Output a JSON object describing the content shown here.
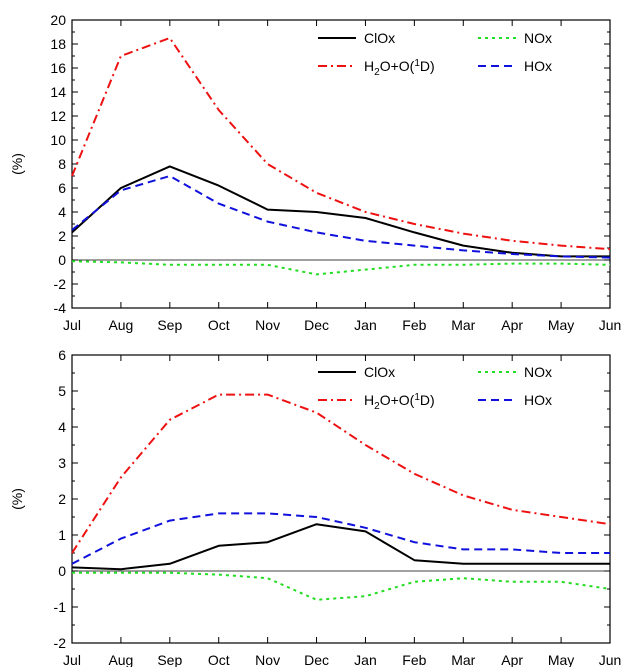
{
  "chart_data": [
    {
      "type": "line",
      "x": [
        "Jul",
        "Aug",
        "Sep",
        "Oct",
        "Nov",
        "Dec",
        "Jan",
        "Feb",
        "Mar",
        "Apr",
        "May",
        "Jun"
      ],
      "ylabel": "(%)",
      "ylim": [
        -4,
        20
      ],
      "yticks": [
        -4,
        -2,
        0,
        2,
        4,
        6,
        8,
        10,
        12,
        14,
        16,
        18,
        20
      ],
      "zero_line": true,
      "legend": "top-right",
      "series": [
        {
          "name": "ClOx",
          "color": "#000000",
          "dash": "solid",
          "values": [
            2.3,
            6.0,
            7.8,
            6.2,
            4.2,
            4.0,
            3.5,
            2.3,
            1.2,
            0.6,
            0.3,
            0.3
          ]
        },
        {
          "name": "NOx",
          "color": "#22dd22",
          "dash": "dotted",
          "values": [
            -0.1,
            -0.2,
            -0.4,
            -0.4,
            -0.4,
            -1.2,
            -0.8,
            -0.4,
            -0.4,
            -0.3,
            -0.3,
            -0.4
          ]
        },
        {
          "name": "H2O+O(1D)",
          "color": "#ee1111",
          "dash": "dashdot",
          "values": [
            7.0,
            17.0,
            18.5,
            12.5,
            8.0,
            5.6,
            4.0,
            3.0,
            2.2,
            1.6,
            1.2,
            0.9
          ]
        },
        {
          "name": "HOx",
          "color": "#1111dd",
          "dash": "dashed",
          "values": [
            2.5,
            5.8,
            7.0,
            4.7,
            3.2,
            2.3,
            1.6,
            1.2,
            0.8,
            0.5,
            0.3,
            0.2
          ]
        }
      ]
    },
    {
      "type": "line",
      "x": [
        "Jul",
        "Aug",
        "Sep",
        "Oct",
        "Nov",
        "Dec",
        "Jan",
        "Feb",
        "Mar",
        "Apr",
        "May",
        "Jun"
      ],
      "ylabel": "(%)",
      "ylim": [
        -2,
        6
      ],
      "yticks": [
        -2,
        -1,
        0,
        1,
        2,
        3,
        4,
        5,
        6
      ],
      "zero_line": true,
      "legend": "top-right",
      "series": [
        {
          "name": "ClOx",
          "color": "#000000",
          "dash": "solid",
          "values": [
            0.1,
            0.05,
            0.2,
            0.7,
            0.8,
            1.3,
            1.1,
            0.3,
            0.2,
            0.2,
            0.2,
            0.2
          ]
        },
        {
          "name": "NOx",
          "color": "#22dd22",
          "dash": "dotted",
          "values": [
            -0.05,
            -0.05,
            -0.05,
            -0.1,
            -0.2,
            -0.8,
            -0.7,
            -0.3,
            -0.2,
            -0.3,
            -0.3,
            -0.5
          ]
        },
        {
          "name": "H2O+O(1D)",
          "color": "#ee1111",
          "dash": "dashdot",
          "values": [
            0.5,
            2.6,
            4.2,
            4.9,
            4.9,
            4.4,
            3.5,
            2.7,
            2.1,
            1.7,
            1.5,
            1.3
          ]
        },
        {
          "name": "HOx",
          "color": "#1111dd",
          "dash": "dashed",
          "values": [
            0.2,
            0.9,
            1.4,
            1.6,
            1.6,
            1.5,
            1.2,
            0.8,
            0.6,
            0.6,
            0.5,
            0.5
          ]
        }
      ]
    }
  ]
}
